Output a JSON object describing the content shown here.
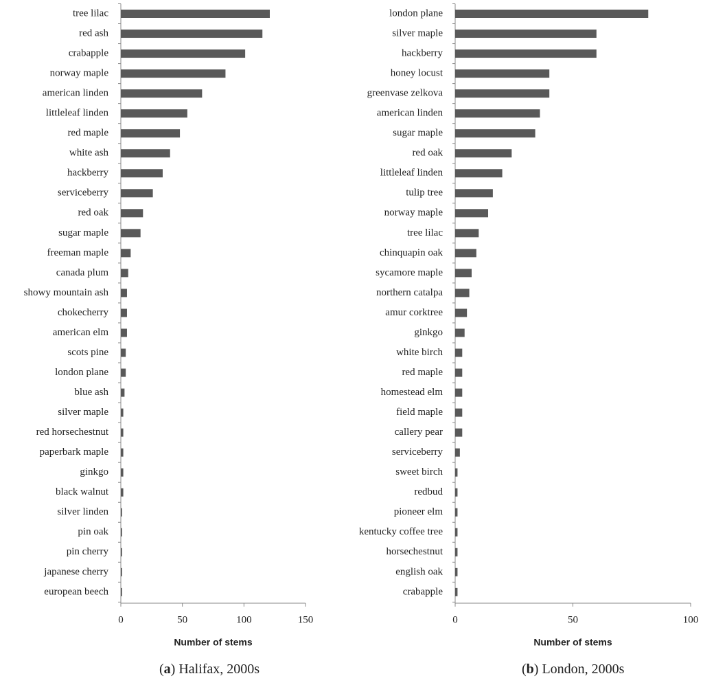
{
  "chart_data": [
    {
      "type": "bar",
      "orientation": "horizontal",
      "color": "#595959",
      "categories": [
        "tree lilac",
        "red ash",
        "crabapple",
        "norway maple",
        "american linden",
        "littleleaf linden",
        "red maple",
        "white ash",
        "hackberry",
        "serviceberry",
        "red oak",
        "sugar maple",
        "freeman maple",
        "canada plum",
        "showy mountain ash",
        "chokecherry",
        "american elm",
        "scots pine",
        "london plane",
        "blue ash",
        "silver maple",
        "red horsechestnut",
        "paperbark maple",
        "ginkgo",
        "black walnut",
        "silver linden",
        "pin oak",
        "pin cherry",
        "japanese cherry",
        "european beech"
      ],
      "values": [
        121,
        115,
        101,
        85,
        66,
        54,
        48,
        40,
        34,
        26,
        18,
        16,
        8,
        6,
        5,
        5,
        5,
        4,
        4,
        3,
        2,
        2,
        2,
        2,
        2,
        1,
        1,
        1,
        1,
        1
      ],
      "xlim": [
        0,
        150
      ],
      "xticks": [
        0,
        50,
        100,
        150
      ],
      "xlabel": "Number of stems",
      "caption": [
        "(",
        "a",
        ") Halifax, 2000s"
      ]
    },
    {
      "type": "bar",
      "orientation": "horizontal",
      "color": "#595959",
      "categories": [
        "london plane",
        "silver maple",
        "hackberry",
        "honey locust",
        "greenvase zelkova",
        "american linden",
        "sugar maple",
        "red oak",
        "littleleaf linden",
        "tulip tree",
        "norway maple",
        "tree lilac",
        "chinquapin oak",
        "sycamore maple",
        "northern catalpa",
        "amur corktree",
        "ginkgo",
        "white birch",
        "red maple",
        "homestead elm",
        "field maple",
        "callery pear",
        "serviceberry",
        "sweet birch",
        "redbud",
        "pioneer elm",
        "kentucky coffee tree",
        "horsechestnut",
        "english oak",
        "crabapple"
      ],
      "values": [
        82,
        60,
        60,
        40,
        40,
        36,
        34,
        24,
        20,
        16,
        14,
        10,
        9,
        7,
        6,
        5,
        4,
        3,
        3,
        3,
        3,
        3,
        2,
        1,
        1,
        1,
        1,
        1,
        1,
        1
      ],
      "xlim": [
        0,
        100
      ],
      "xticks": [
        0,
        50,
        100
      ],
      "xlabel": "Number of stems",
      "caption": [
        "(",
        "b",
        ") London, 2000s"
      ]
    }
  ]
}
